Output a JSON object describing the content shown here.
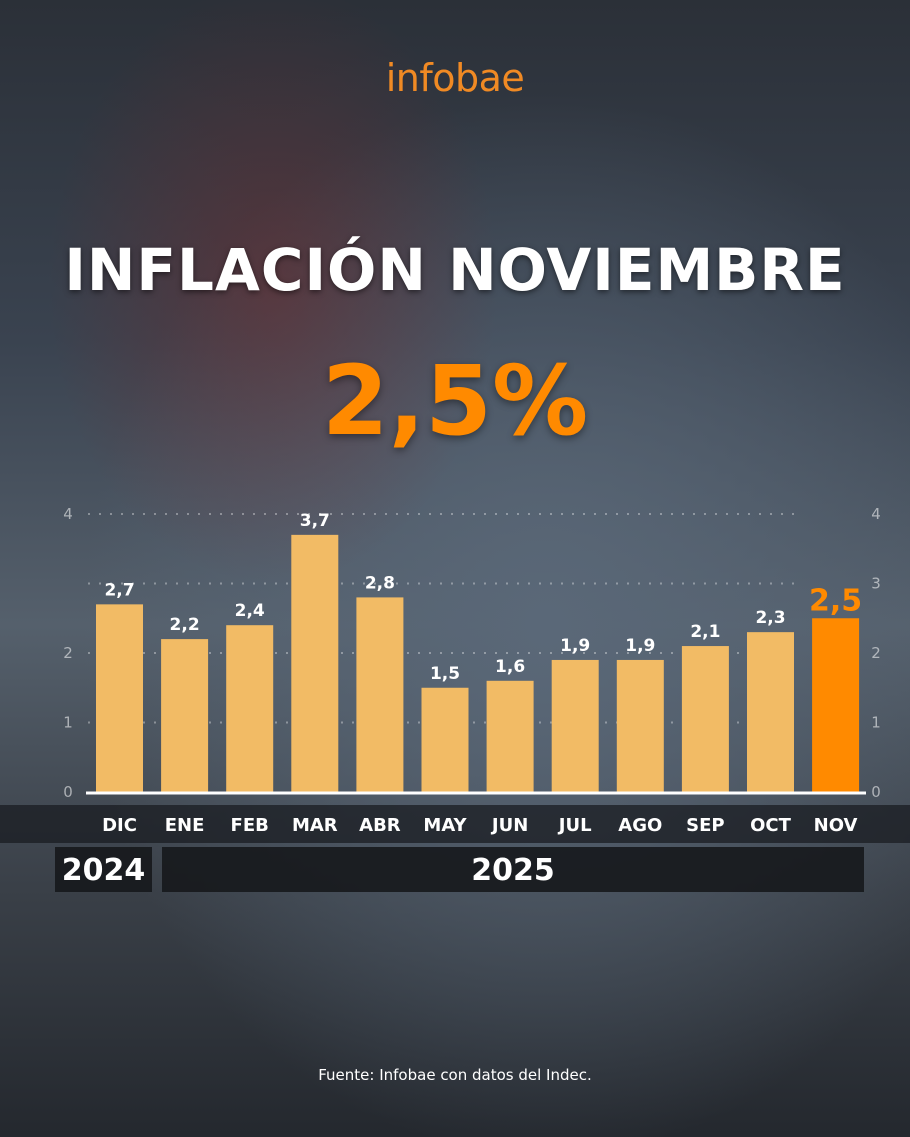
{
  "logo": "infobae",
  "title": "INFLACIÓN NOVIEMBRE",
  "headline_value": "2,5%",
  "source": "Fuente: Infobae con datos del Indec.",
  "colors": {
    "bar": "#f2bb65",
    "highlight": "#ff8a00",
    "text": "#ffffff"
  },
  "chart_data": {
    "type": "bar",
    "title": "INFLACIÓN NOVIEMBRE",
    "categories": [
      "DIC",
      "ENE",
      "FEB",
      "MAR",
      "ABR",
      "MAY",
      "JUN",
      "JUL",
      "AGO",
      "SEP",
      "OCT",
      "NOV"
    ],
    "values": [
      2.7,
      2.2,
      2.4,
      3.7,
      2.8,
      1.5,
      1.6,
      1.9,
      1.9,
      2.1,
      2.3,
      2.5
    ],
    "value_labels": [
      "2,7",
      "2,2",
      "2,4",
      "3,7",
      "2,8",
      "1,5",
      "1,6",
      "1,9",
      "1,9",
      "2,1",
      "2,3",
      "2,5"
    ],
    "highlight_index": 11,
    "ylim": [
      0,
      4
    ],
    "left_ticks": [
      "0",
      "1",
      "2",
      "4"
    ],
    "right_ticks": [
      "0",
      "1",
      "2",
      "3",
      "4"
    ],
    "grid": true,
    "year_groups": [
      {
        "label": "2024",
        "count": 1
      },
      {
        "label": "2025",
        "count": 11
      }
    ],
    "xlabel": "",
    "ylabel": ""
  }
}
